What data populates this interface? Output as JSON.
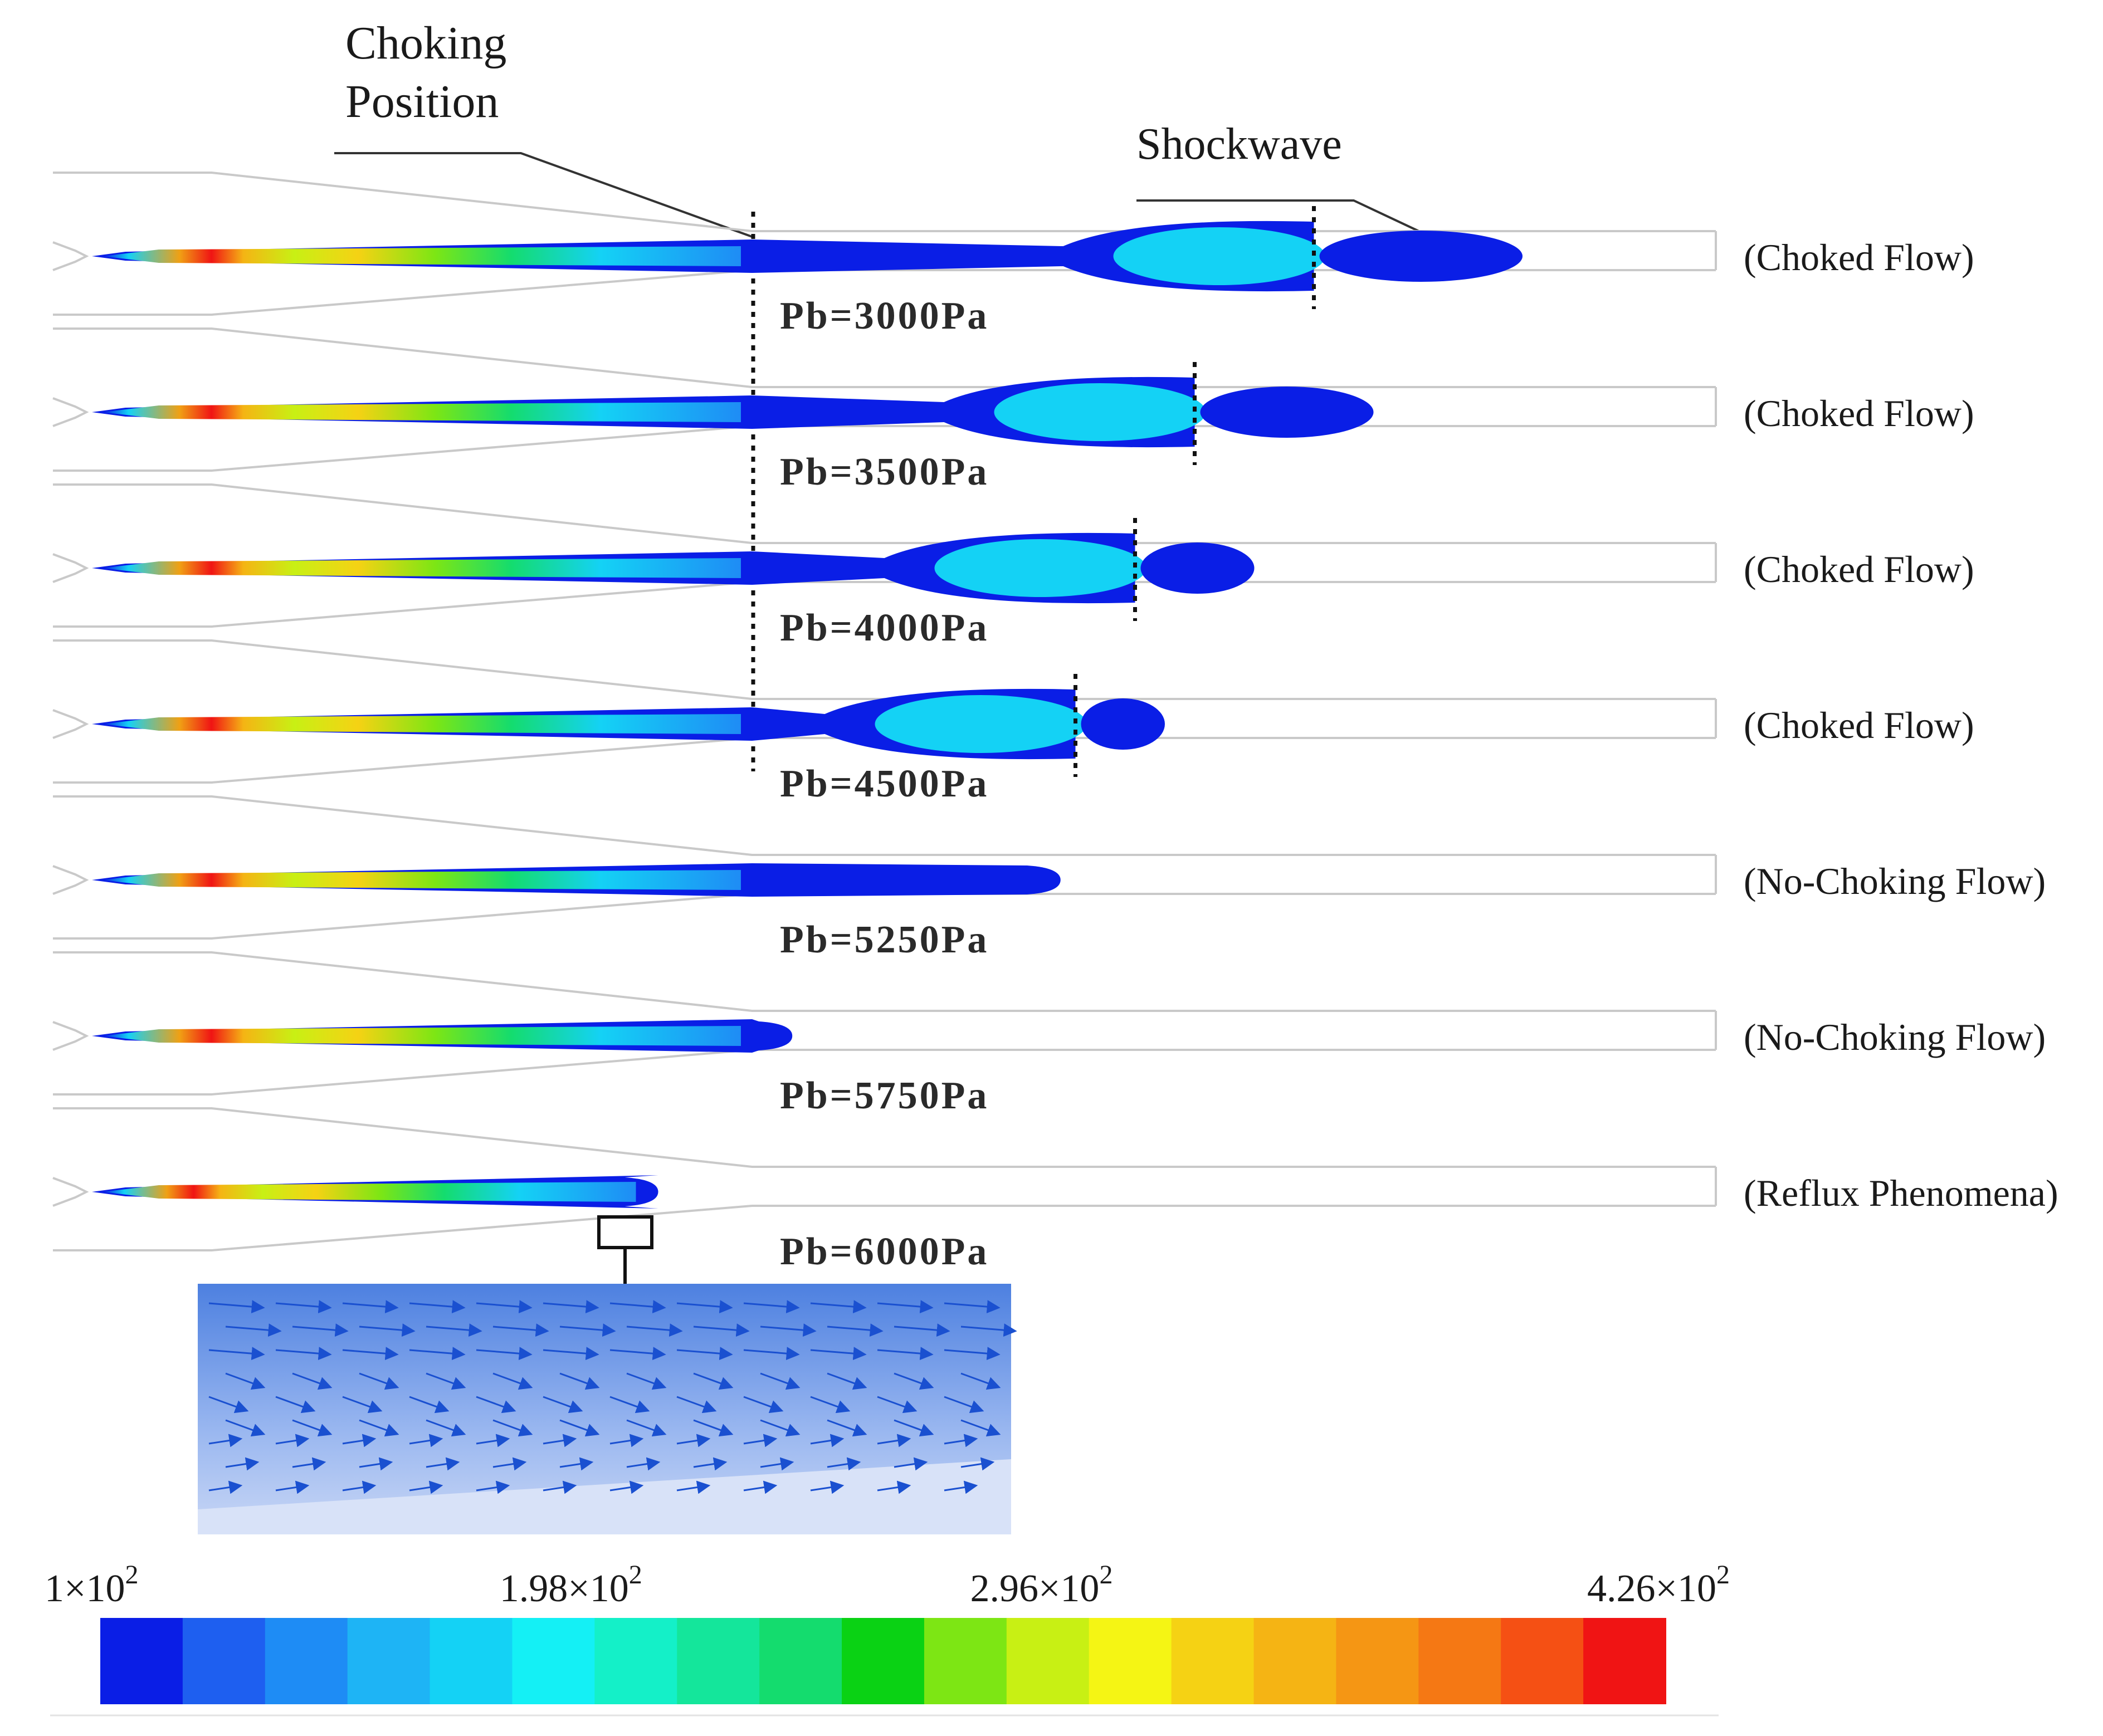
{
  "annotations": {
    "choking_position_line1": "Choking",
    "choking_position_line2": "Position",
    "shockwave": "Shockwave"
  },
  "cases": [
    {
      "pressure": "Pb=3000Pa",
      "flow": "(Choked Flow)",
      "jet_extent": 0.96,
      "shock_position": 0.82,
      "choked": true
    },
    {
      "pressure": "Pb=3500Pa",
      "flow": "(Choked Flow)",
      "jet_extent": 0.86,
      "shock_position": 0.74,
      "choked": true
    },
    {
      "pressure": "Pb=4000Pa",
      "flow": "(Choked Flow)",
      "jet_extent": 0.78,
      "shock_position": 0.7,
      "choked": true
    },
    {
      "pressure": "Pb=4500Pa",
      "flow": "(Choked Flow)",
      "jet_extent": 0.72,
      "shock_position": 0.66,
      "choked": true
    },
    {
      "pressure": "Pb=5250Pa",
      "flow": "(No-Choking Flow)",
      "jet_extent": 0.65,
      "choked": false
    },
    {
      "pressure": "Pb=5750Pa",
      "flow": "(No-Choking Flow)",
      "jet_extent": 0.47,
      "choked": false
    },
    {
      "pressure": "Pb=6000Pa",
      "flow": "(Reflux Phenomena)",
      "jet_extent": 0.38,
      "choked": false
    }
  ],
  "colorbar": {
    "tick_labels": [
      {
        "mantissa": "1×10",
        "exp": "2"
      },
      {
        "mantissa": "1.98×10",
        "exp": "2"
      },
      {
        "mantissa": "2.96×10",
        "exp": "2"
      },
      {
        "mantissa": "4.26×10",
        "exp": "2"
      }
    ],
    "tick_values": [
      100,
      198,
      296,
      426
    ],
    "range": [
      100,
      426
    ],
    "colors": [
      "#0a1ee6",
      "#1e5ff0",
      "#1e8cf5",
      "#1eb4f5",
      "#14d2f5",
      "#14f0f5",
      "#14f0c8",
      "#14e69b",
      "#14dc6e",
      "#0ad214",
      "#7de614",
      "#c8f014",
      "#f5f514",
      "#f5d214",
      "#f5b414",
      "#f59614",
      "#f57814",
      "#f55014",
      "#f01414"
    ]
  },
  "inset": {
    "description_icon": "velocity-vector-inset"
  }
}
